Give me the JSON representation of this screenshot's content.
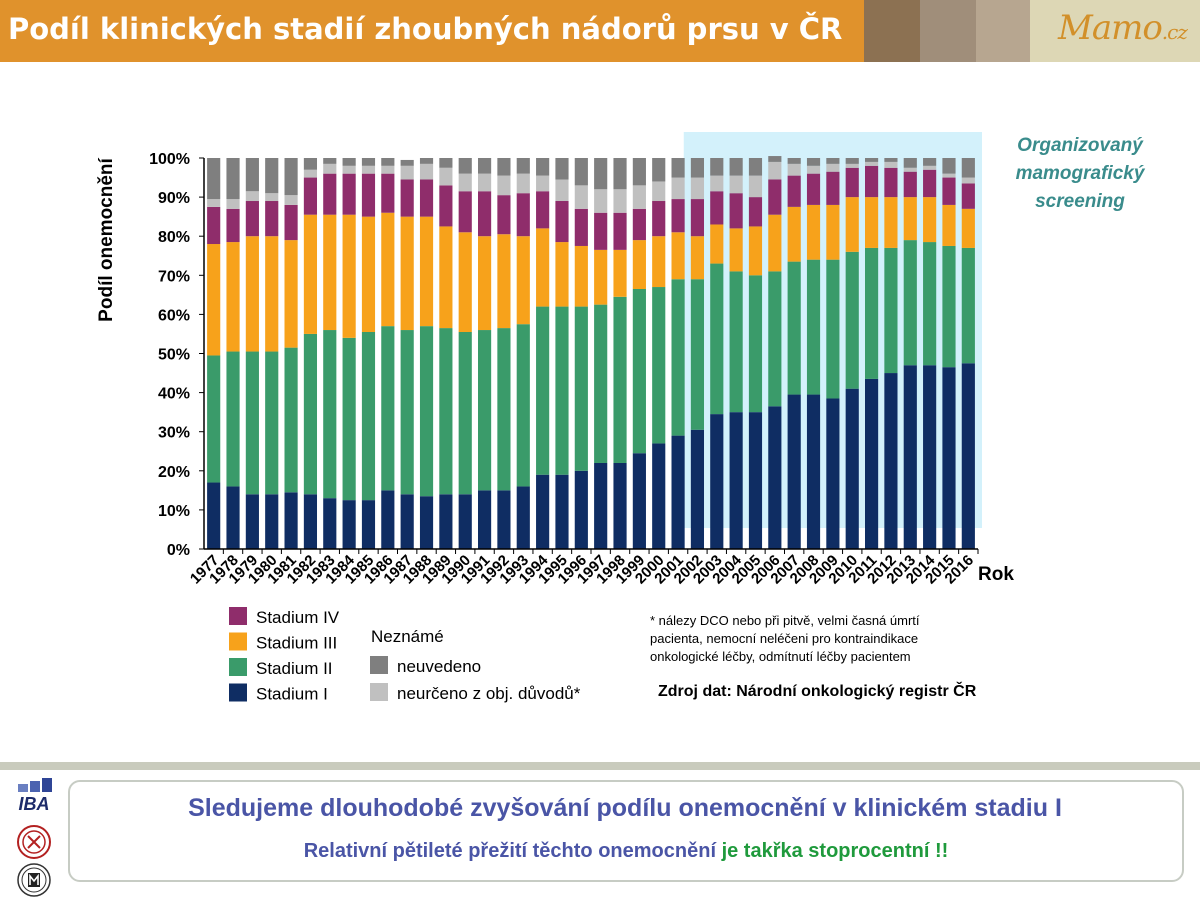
{
  "header": {
    "title": "Podíl klinických stadií zhoubných nádorů prsu v ČR",
    "logo_main": "Mamo",
    "logo_domain": ".cz"
  },
  "chart_data": {
    "type": "bar",
    "stacked": true,
    "ylabel": "Podíl onemocnění",
    "xlabel": "Rok",
    "ylim": [
      0,
      100
    ],
    "y_ticks": [
      "0%",
      "10%",
      "20%",
      "30%",
      "40%",
      "50%",
      "60%",
      "70%",
      "80%",
      "90%",
      "100%"
    ],
    "categories": [
      "1977",
      "1978",
      "1979",
      "1980",
      "1981",
      "1982",
      "1983",
      "1984",
      "1985",
      "1986",
      "1987",
      "1988",
      "1989",
      "1990",
      "1991",
      "1992",
      "1993",
      "1994",
      "1995",
      "1996",
      "1997",
      "1998",
      "1999",
      "2000",
      "2001",
      "2002",
      "2003",
      "2004",
      "2005",
      "2006",
      "2007",
      "2008",
      "2009",
      "2010",
      "2011",
      "2012",
      "2013",
      "2014",
      "2015",
      "2016"
    ],
    "series": [
      {
        "name": "Stadium I",
        "color": "#0f2d63",
        "values": [
          17,
          16,
          14,
          14,
          14.5,
          14,
          13,
          12.5,
          12.5,
          15,
          14,
          13.5,
          14,
          14,
          15,
          15,
          16,
          19,
          19,
          20,
          22,
          22,
          24.5,
          27,
          29,
          30.5,
          34.5,
          35,
          35,
          36.5,
          39.5,
          39.5,
          38.5,
          41,
          43.5,
          45,
          47,
          47,
          46.5,
          47.5
        ]
      },
      {
        "name": "Stadium II",
        "color": "#3a9b6a",
        "values": [
          32.5,
          34.5,
          36.5,
          36.5,
          37,
          41,
          43,
          41.5,
          43,
          42,
          42,
          43.5,
          42.5,
          41.5,
          41,
          41.5,
          41.5,
          43,
          43,
          42,
          40.5,
          42.5,
          42,
          40,
          40,
          38.5,
          38.5,
          36,
          35,
          34.5,
          34,
          34.5,
          35.5,
          35,
          33.5,
          32,
          32,
          31.5,
          31,
          29.5
        ]
      },
      {
        "name": "Stadium III",
        "color": "#f7a21b",
        "values": [
          28.5,
          28,
          29.5,
          29.5,
          27.5,
          30.5,
          29.5,
          31.5,
          29.5,
          29,
          29,
          28,
          26,
          25.5,
          24,
          24,
          22.5,
          20,
          16.5,
          15.5,
          14,
          12,
          12.5,
          13,
          12,
          11,
          10,
          11,
          12.5,
          14.5,
          14,
          14,
          14,
          14,
          13,
          13,
          11,
          11.5,
          10.5,
          10
        ]
      },
      {
        "name": "Stadium IV",
        "color": "#8f2d6b",
        "values": [
          9.5,
          8.5,
          9,
          9,
          9,
          9.5,
          10.5,
          10.5,
          11,
          10,
          9.5,
          9.5,
          10.5,
          10.5,
          11.5,
          10,
          11,
          9.5,
          10.5,
          9.5,
          9.5,
          9.5,
          8,
          9,
          8.5,
          9.5,
          8.5,
          9,
          7.5,
          9,
          8,
          8,
          8.5,
          7.5,
          8,
          7.5,
          6.5,
          7,
          7,
          6.5
        ]
      },
      {
        "name": "neurčeno z obj. důvodů*",
        "color": "#c0c0c0",
        "values": [
          2,
          2.5,
          2.5,
          2,
          2.5,
          2,
          2.5,
          2,
          2,
          2,
          3.5,
          4,
          4.5,
          4.5,
          4.5,
          5,
          5,
          4,
          5.5,
          6,
          6,
          6,
          6,
          5,
          5.5,
          5.5,
          4,
          4.5,
          5.5,
          4.5,
          3,
          2,
          2,
          1,
          1,
          1.5,
          1,
          1,
          1,
          1.5
        ]
      },
      {
        "name": "neuvedeno",
        "color": "#7f7f7f",
        "values": [
          10.5,
          10.5,
          8.5,
          9,
          9.5,
          3,
          1.5,
          2,
          2,
          2,
          1.5,
          1.5,
          2.5,
          4,
          4,
          4.5,
          4,
          4.5,
          5.5,
          7,
          8,
          8,
          7,
          6,
          5,
          5,
          4.5,
          4.5,
          4.5,
          1.5,
          1.5,
          2,
          1.5,
          1.5,
          1,
          1,
          2.5,
          2,
          4,
          5
        ]
      }
    ],
    "legend": {
      "neznáme_title": "Neznámé",
      "items_left": [
        "Stadium IV",
        "Stadium III",
        "Stadium II",
        "Stadium I"
      ],
      "items_right": [
        "neuvedeno",
        "neurčeno z obj. důvodů*"
      ]
    },
    "screening_label": [
      "Organizovaný",
      "mamografický",
      "screening"
    ],
    "screening_start": "2002",
    "footnote": [
      "* nálezy DCO nebo při pitvě, velmi časná úmrtí",
      "pacienta, nemocní neléčeni pro kontraindikace",
      "onkologické léčby, odmítnutí léčby pacientem"
    ],
    "source": "Zdroj dat: Národní onkologický registr ČR",
    "colors": {
      "axis_text": "#000000",
      "screening_bg": "#d3f1fb",
      "screening_label": "#3a8c8c"
    }
  },
  "footer": {
    "line1": "Sledujeme dlouhodobé zvyšování podílu onemocnění v klinickém stadiu I",
    "line2_a": "Relativní pětileté přežití těchto onemocnění ",
    "line2_b": "je takřka stoprocentní !!",
    "iba": "IBA"
  }
}
